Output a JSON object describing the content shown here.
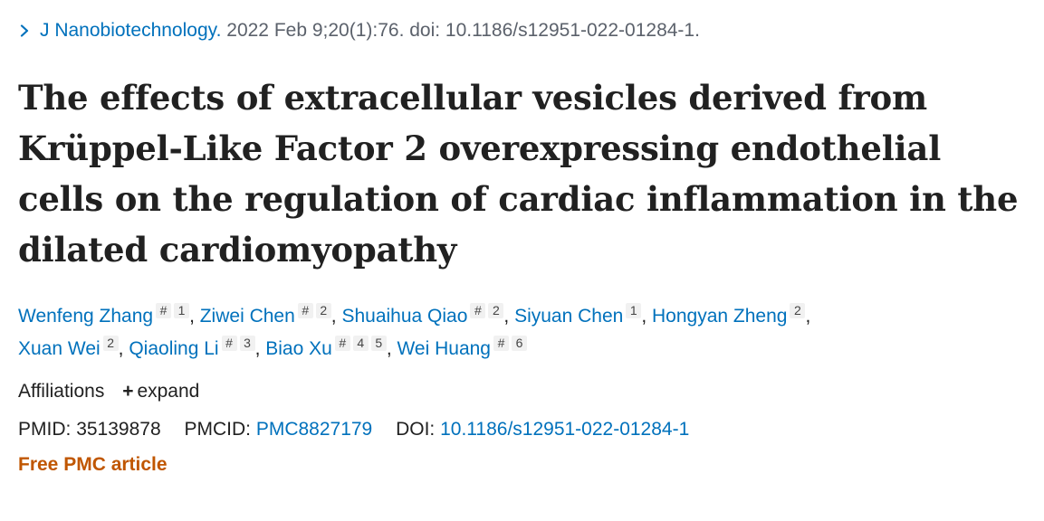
{
  "journal": {
    "name": "J Nanobiotechnology.",
    "citation": "2022 Feb 9;20(1):76. doi: 10.1186/s12951-022-01284-1."
  },
  "title": "The effects of extracellular vesicles derived from Krüppel-Like Factor 2 overexpressing endothelial cells on the regulation of cardiac inflammation in the dilated cardiomyopathy",
  "authors": [
    {
      "name": "Wenfeng Zhang",
      "marks": [
        "#",
        "1"
      ]
    },
    {
      "name": "Ziwei Chen",
      "marks": [
        "#",
        "2"
      ]
    },
    {
      "name": "Shuaihua Qiao",
      "marks": [
        "#",
        "2"
      ]
    },
    {
      "name": "Siyuan Chen",
      "marks": [
        "1"
      ]
    },
    {
      "name": "Hongyan Zheng",
      "marks": [
        "2"
      ]
    },
    {
      "name": "Xuan Wei",
      "marks": [
        "2"
      ]
    },
    {
      "name": "Qiaoling Li",
      "marks": [
        "#",
        "3"
      ]
    },
    {
      "name": "Biao Xu",
      "marks": [
        "#",
        "4",
        "5"
      ]
    },
    {
      "name": "Wei Huang",
      "marks": [
        "#",
        "6"
      ]
    }
  ],
  "affiliations": {
    "label": "Affiliations",
    "expand_icon": "+",
    "expand_label": "expand"
  },
  "identifiers": {
    "pmid_label": "PMID:",
    "pmid": "35139878",
    "pmcid_label": "PMCID:",
    "pmcid": "PMC8827179",
    "doi_label": "DOI:",
    "doi": "10.1186/s12951-022-01284-1"
  },
  "free_pmc": "Free PMC article",
  "colors": {
    "link": "#0071bc",
    "free_article": "#c05600",
    "text": "#212121",
    "muted": "#5b616b"
  },
  "icons": {
    "journal_chevron": "chevron-right-icon"
  }
}
